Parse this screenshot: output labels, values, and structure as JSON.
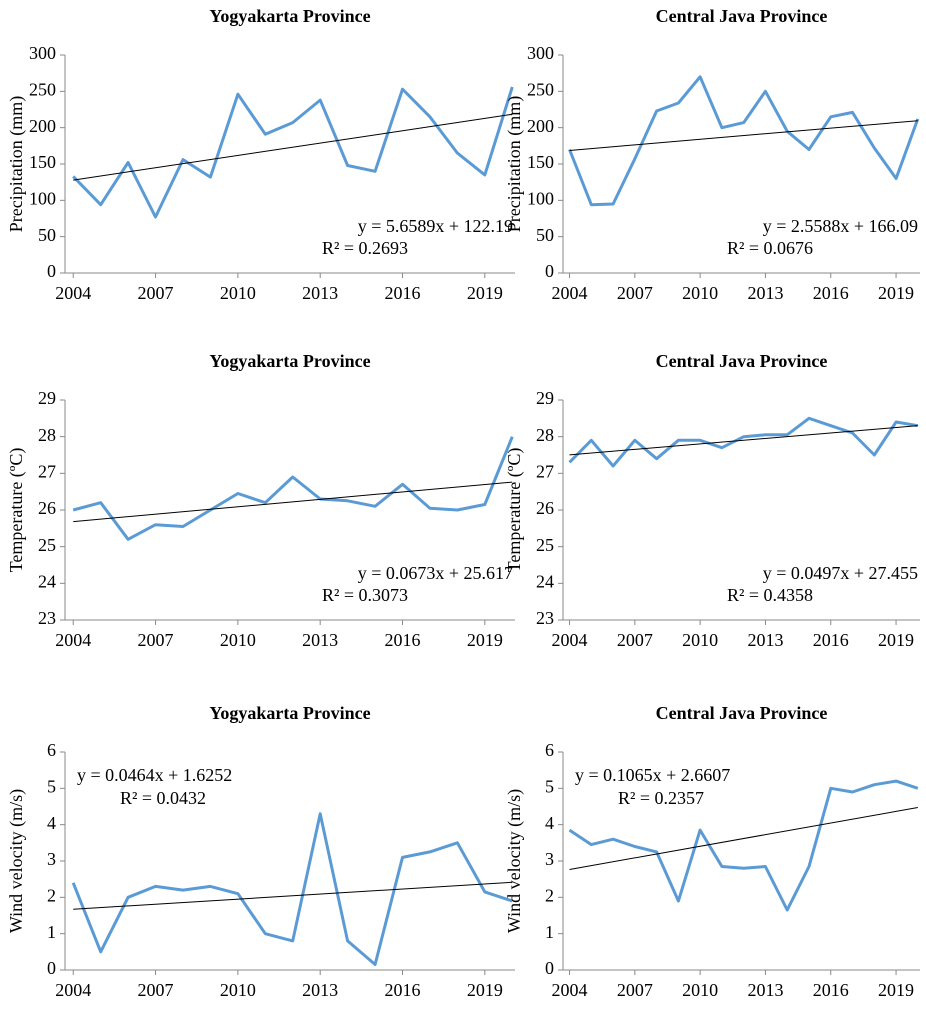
{
  "chart_data": [
    {
      "type": "line",
      "title": "Yogyakarta Province",
      "ylabel": "Precipitation (mm)",
      "x": [
        2004,
        2005,
        2006,
        2007,
        2008,
        2009,
        2010,
        2011,
        2012,
        2013,
        2014,
        2015,
        2016,
        2017,
        2018,
        2019,
        2020
      ],
      "xlim": [
        2003.7,
        2020.1
      ],
      "xticks": [
        2004,
        2007,
        2010,
        2013,
        2016,
        2019
      ],
      "ylim": [
        0,
        300
      ],
      "yticks": [
        0,
        50,
        100,
        150,
        200,
        250,
        300
      ],
      "color": "#5b9bd5",
      "values": [
        133,
        94,
        152,
        77,
        156,
        132,
        246,
        191,
        207,
        238,
        148,
        140,
        253,
        215,
        165,
        135,
        256
      ],
      "trendline": {
        "slope": 5.6589,
        "intercept": 122.19,
        "color": "#000000",
        "equation": "y = 5.6589x + 122.19",
        "r_squared": "R² = 0.2693"
      },
      "annotation_corner": "bottom-right"
    },
    {
      "type": "line",
      "title": "Central Java Province",
      "ylabel": "Precipitation (mm)",
      "x": [
        2004,
        2005,
        2006,
        2007,
        2008,
        2009,
        2010,
        2011,
        2012,
        2013,
        2014,
        2015,
        2016,
        2017,
        2018,
        2019,
        2020
      ],
      "xlim": [
        2003.7,
        2020.1
      ],
      "xticks": [
        2004,
        2007,
        2010,
        2013,
        2016,
        2019
      ],
      "ylim": [
        0,
        300
      ],
      "yticks": [
        0,
        50,
        100,
        150,
        200,
        250,
        300
      ],
      "color": "#5b9bd5",
      "values": [
        170,
        94,
        95,
        157,
        223,
        234,
        270,
        200,
        207,
        250,
        195,
        170,
        215,
        221,
        172,
        130,
        212
      ],
      "trendline": {
        "slope": 2.5588,
        "intercept": 166.09,
        "color": "#000000",
        "equation": "y = 2.5588x + 166.09",
        "r_squared": "R² = 0.0676"
      },
      "annotation_corner": "bottom-right"
    },
    {
      "type": "line",
      "title": "Yogyakarta Province",
      "ylabel": "Temperature (ºC)",
      "x": [
        2004,
        2005,
        2006,
        2007,
        2008,
        2009,
        2010,
        2011,
        2012,
        2013,
        2014,
        2015,
        2016,
        2017,
        2018,
        2019,
        2020
      ],
      "xlim": [
        2003.7,
        2020.1
      ],
      "xticks": [
        2004,
        2007,
        2010,
        2013,
        2016,
        2019
      ],
      "ylim": [
        23,
        29
      ],
      "yticks": [
        23,
        24,
        25,
        26,
        27,
        28,
        29
      ],
      "color": "#5b9bd5",
      "values": [
        26.0,
        26.2,
        25.2,
        25.6,
        25.55,
        26.0,
        26.45,
        26.2,
        26.9,
        26.3,
        26.25,
        26.1,
        26.7,
        26.05,
        26.0,
        26.15,
        28.0
      ],
      "trendline": {
        "slope": 0.0673,
        "intercept": 25.617,
        "color": "#000000",
        "equation": "y = 0.0673x + 25.617",
        "r_squared": "R² = 0.3073"
      },
      "annotation_corner": "bottom-right"
    },
    {
      "type": "line",
      "title": "Central Java Province",
      "ylabel": "Temperature (ºC)",
      "x": [
        2004,
        2005,
        2006,
        2007,
        2008,
        2009,
        2010,
        2011,
        2012,
        2013,
        2014,
        2015,
        2016,
        2017,
        2018,
        2019,
        2020
      ],
      "xlim": [
        2003.7,
        2020.1
      ],
      "xticks": [
        2004,
        2007,
        2010,
        2013,
        2016,
        2019
      ],
      "ylim": [
        23,
        29
      ],
      "yticks": [
        23,
        24,
        25,
        26,
        27,
        28,
        29
      ],
      "color": "#5b9bd5",
      "values": [
        27.3,
        27.9,
        27.2,
        27.9,
        27.4,
        27.9,
        27.9,
        27.7,
        28.0,
        28.05,
        28.05,
        28.5,
        28.3,
        28.1,
        27.5,
        28.4,
        28.3
      ],
      "trendline": {
        "slope": 0.0497,
        "intercept": 27.455,
        "color": "#000000",
        "equation": "y = 0.0497x + 27.455",
        "r_squared": "R² = 0.4358"
      },
      "annotation_corner": "bottom-right"
    },
    {
      "type": "line",
      "title": "Yogyakarta Province",
      "ylabel": "Wind velocity (m/s)",
      "x": [
        2004,
        2005,
        2006,
        2007,
        2008,
        2009,
        2010,
        2011,
        2012,
        2013,
        2014,
        2015,
        2016,
        2017,
        2018,
        2019,
        2020
      ],
      "xlim": [
        2003.7,
        2020.1
      ],
      "xticks": [
        2004,
        2007,
        2010,
        2013,
        2016,
        2019
      ],
      "ylim": [
        0,
        6
      ],
      "yticks": [
        0,
        1,
        2,
        3,
        4,
        5,
        6
      ],
      "color": "#5b9bd5",
      "values": [
        2.4,
        0.5,
        2.0,
        2.3,
        2.2,
        2.3,
        2.1,
        1.0,
        0.8,
        4.3,
        0.8,
        0.15,
        3.1,
        3.25,
        3.5,
        2.15,
        1.9
      ],
      "trendline": {
        "slope": 0.0464,
        "intercept": 1.6252,
        "color": "#000000",
        "equation": "y = 0.0464x + 1.6252",
        "r_squared": "R² = 0.0432"
      },
      "annotation_corner": "top-left"
    },
    {
      "type": "line",
      "title": "Central Java Province",
      "ylabel": "Wind velocity (m/s)",
      "x": [
        2004,
        2005,
        2006,
        2007,
        2008,
        2009,
        2010,
        2011,
        2012,
        2013,
        2014,
        2015,
        2016,
        2017,
        2018,
        2019,
        2020
      ],
      "xlim": [
        2003.7,
        2020.1
      ],
      "xticks": [
        2004,
        2007,
        2010,
        2013,
        2016,
        2019
      ],
      "ylim": [
        0,
        6
      ],
      "yticks": [
        0,
        1,
        2,
        3,
        4,
        5,
        6
      ],
      "color": "#5b9bd5",
      "values": [
        3.85,
        3.45,
        3.6,
        3.4,
        3.25,
        1.9,
        3.85,
        2.85,
        2.8,
        2.85,
        1.65,
        2.85,
        5.0,
        4.9,
        5.1,
        5.2,
        5.0
      ],
      "trendline": {
        "slope": 0.1065,
        "intercept": 2.6607,
        "color": "#000000",
        "equation": "y = 0.1065x + 2.6607",
        "r_squared": "R² = 0.2357"
      },
      "annotation_corner": "top-left"
    }
  ]
}
